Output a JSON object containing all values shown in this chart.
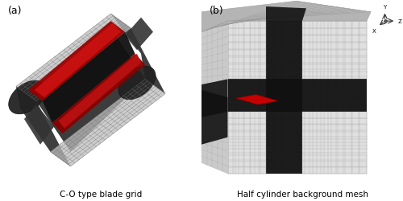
{
  "title_a": "(a)",
  "title_b": "(b)",
  "caption_a": "C-O type blade grid",
  "caption_b": "Half cylinder background mesh",
  "bg_color": "#ffffff",
  "caption_fontsize": 7.5,
  "label_fontsize": 9
}
